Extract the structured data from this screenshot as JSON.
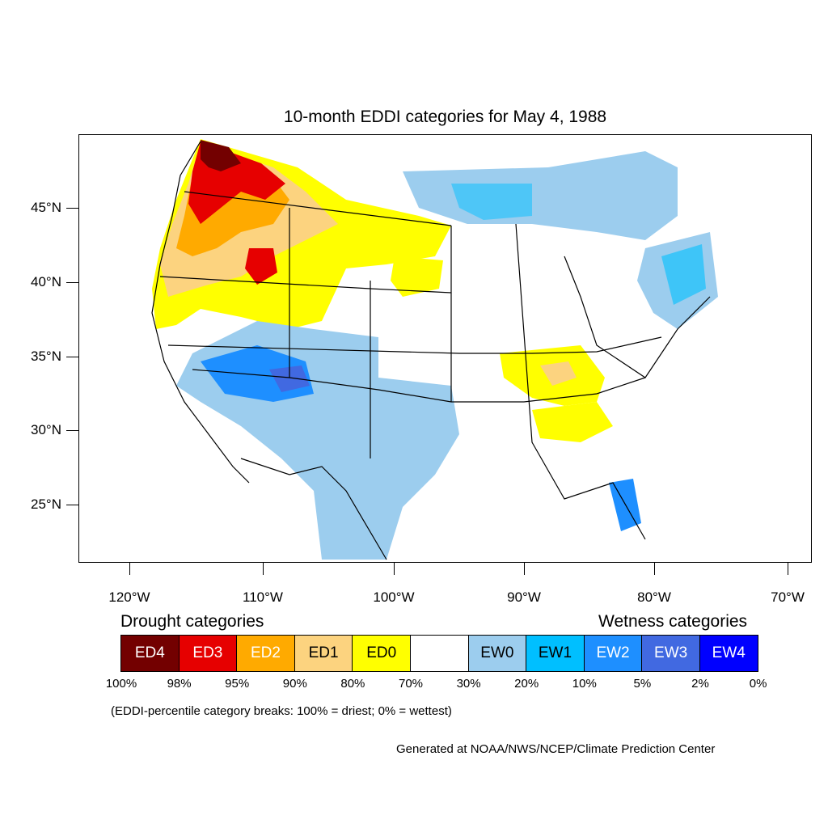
{
  "title": "10-month EDDI categories for May 4, 1988",
  "lat_labels": [
    "45°N",
    "40°N",
    "35°N",
    "30°N",
    "25°N"
  ],
  "lon_labels": [
    "120°W",
    "110°W",
    "100°W",
    "90°W",
    "80°W",
    "70°W"
  ],
  "legend": {
    "drought_heading": "Drought categories",
    "wetness_heading": "Wetness categories",
    "categories": [
      {
        "label": "ED4",
        "color": "#730000",
        "text_color": "#ffffff"
      },
      {
        "label": "ED3",
        "color": "#e60000",
        "text_color": "#ffffff"
      },
      {
        "label": "ED2",
        "color": "#ffaa00",
        "text_color": "#ffffff"
      },
      {
        "label": "ED1",
        "color": "#fcd37f",
        "text_color": "#000000"
      },
      {
        "label": "ED0",
        "color": "#ffff00",
        "text_color": "#000000"
      },
      {
        "label": "",
        "color": "#ffffff",
        "text_color": "#000000"
      },
      {
        "label": "EW0",
        "color": "#9ccdee",
        "text_color": "#000000"
      },
      {
        "label": "EW1",
        "color": "#00bfff",
        "text_color": "#000000"
      },
      {
        "label": "EW2",
        "color": "#1e8fff",
        "text_color": "#ffffff"
      },
      {
        "label": "EW3",
        "color": "#4169e1",
        "text_color": "#ffffff"
      },
      {
        "label": "EW4",
        "color": "#0000ff",
        "text_color": "#ffffff"
      }
    ],
    "breaks": [
      "100%",
      "98%",
      "95%",
      "90%",
      "80%",
      "70%",
      "30%",
      "20%",
      "10%",
      "5%",
      "2%",
      "0%"
    ]
  },
  "note": "(EDDI-percentile category breaks: 100% = driest; 0% = wettest)",
  "credit": "Generated at NOAA/NWS/NCEP/Climate Prediction Center"
}
